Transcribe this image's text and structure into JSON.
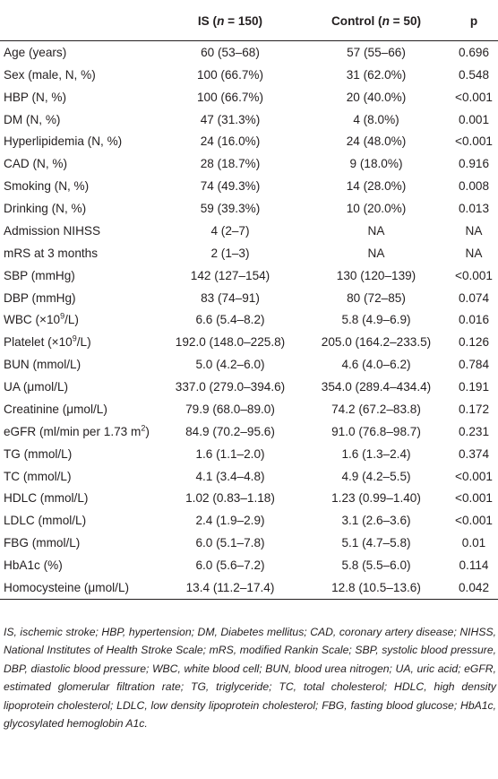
{
  "table": {
    "header": {
      "col0": "",
      "col1_prefix": "IS (",
      "col1_n": "n",
      "col1_suffix": " = 150)",
      "col2_prefix": "Control (",
      "col2_n": "n",
      "col2_suffix": " = 50)",
      "col3": "p"
    },
    "rows": [
      {
        "variable": "Age (years)",
        "is": "60 (53–68)",
        "control": "57 (55–66)",
        "p": "0.696"
      },
      {
        "variable": "Sex (male, N, %)",
        "is": "100 (66.7%)",
        "control": "31 (62.0%)",
        "p": "0.548"
      },
      {
        "variable": "HBP (N, %)",
        "is": "100 (66.7%)",
        "control": "20 (40.0%)",
        "p": "<0.001"
      },
      {
        "variable": "DM (N, %)",
        "is": "47 (31.3%)",
        "control": "4 (8.0%)",
        "p": "0.001"
      },
      {
        "variable": "Hyperlipidemia (N, %)",
        "is": "24 (16.0%)",
        "control": "24 (48.0%)",
        "p": "<0.001"
      },
      {
        "variable": "CAD (N, %)",
        "is": "28 (18.7%)",
        "control": "9 (18.0%)",
        "p": "0.916"
      },
      {
        "variable": "Smoking (N, %)",
        "is": "74 (49.3%)",
        "control": "14 (28.0%)",
        "p": "0.008"
      },
      {
        "variable": "Drinking (N, %)",
        "is": "59 (39.3%)",
        "control": "10 (20.0%)",
        "p": "0.013"
      },
      {
        "variable": "Admission NIHSS",
        "is": "4 (2–7)",
        "control": "NA",
        "p": "NA"
      },
      {
        "variable": "mRS at 3 months",
        "is": "2 (1–3)",
        "control": "NA",
        "p": "NA"
      },
      {
        "variable": "SBP (mmHg)",
        "is": "142 (127–154)",
        "control": "130 (120–139)",
        "p": "<0.001"
      },
      {
        "variable": "DBP (mmHg)",
        "is": "83 (74–91)",
        "control": "80 (72–85)",
        "p": "0.074"
      },
      {
        "variable_pre": "WBC (×10",
        "variable_sup": "9",
        "variable_post": "/L)",
        "is": "6.6 (5.4–8.2)",
        "control": "5.8 (4.9–6.9)",
        "p": "0.016"
      },
      {
        "variable_pre": "Platelet (×10",
        "variable_sup": "9",
        "variable_post": "/L)",
        "is": "192.0 (148.0–225.8)",
        "control": "205.0 (164.2–233.5)",
        "p": "0.126"
      },
      {
        "variable": "BUN (mmol/L)",
        "is": "5.0 (4.2–6.0)",
        "control": "4.6 (4.0–6.2)",
        "p": "0.784"
      },
      {
        "variable": "UA (μmol/L)",
        "is": "337.0 (279.0–394.6)",
        "control": "354.0 (289.4–434.4)",
        "p": "0.191"
      },
      {
        "variable": "Creatinine (μmol/L)",
        "is": "79.9 (68.0–89.0)",
        "control": "74.2 (67.2–83.8)",
        "p": "0.172"
      },
      {
        "variable_pre": "eGFR (ml/min per 1.73 m",
        "variable_sup": "2",
        "variable_post": ")",
        "is": "84.9 (70.2–95.6)",
        "control": "91.0 (76.8–98.7)",
        "p": "0.231"
      },
      {
        "variable": "TG (mmol/L)",
        "is": "1.6 (1.1–2.0)",
        "control": "1.6 (1.3–2.4)",
        "p": "0.374"
      },
      {
        "variable": "TC (mmol/L)",
        "is": "4.1 (3.4–4.8)",
        "control": "4.9 (4.2–5.5)",
        "p": "<0.001"
      },
      {
        "variable": "HDLC (mmol/L)",
        "is": "1.02 (0.83–1.18)",
        "control": "1.23 (0.99–1.40)",
        "p": "<0.001"
      },
      {
        "variable": "LDLC (mmol/L)",
        "is": "2.4 (1.9–2.9)",
        "control": "3.1 (2.6–3.6)",
        "p": "<0.001"
      },
      {
        "variable": "FBG (mmol/L)",
        "is": "6.0 (5.1–7.8)",
        "control": "5.1 (4.7–5.8)",
        "p": "0.01"
      },
      {
        "variable": "HbA1c (%)",
        "is": "6.0 (5.6–7.2)",
        "control": "5.8 (5.5–6.0)",
        "p": "0.114"
      },
      {
        "variable": "Homocysteine (μmol/L)",
        "is": "13.4 (11.2–17.4)",
        "control": "12.8 (10.5–13.6)",
        "p": "0.042"
      }
    ]
  },
  "footnote": "IS, ischemic stroke; HBP, hypertension; DM, Diabetes mellitus; CAD, coronary artery disease; NIHSS, National Institutes of Health Stroke Scale; mRS, modified Rankin Scale; SBP, systolic blood pressure, DBP, diastolic blood pressure; WBC, white blood cell; BUN, blood urea nitrogen; UA, uric acid; eGFR, estimated glomerular filtration rate; TG, triglyceride; TC, total cholesterol; HDLC, high density lipoprotein cholesterol; LDLC, low density lipoprotein cholesterol; FBG, fasting blood glucose; HbA1c, glycosylated hemoglobin A1c."
}
